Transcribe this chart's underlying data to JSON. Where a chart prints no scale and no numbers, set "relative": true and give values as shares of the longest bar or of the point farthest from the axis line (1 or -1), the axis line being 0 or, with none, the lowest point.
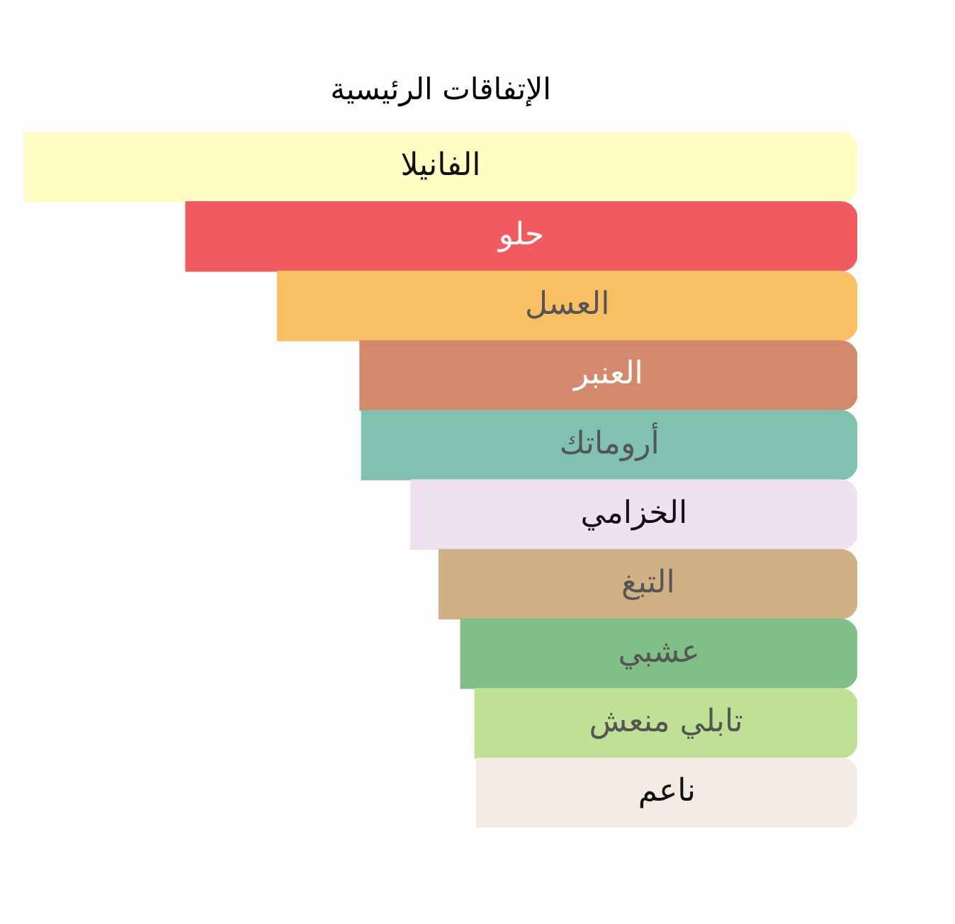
{
  "chart_data": {
    "type": "bar",
    "orientation": "horizontal",
    "relative": true,
    "title": "الإتفاقات الرئيسية",
    "categories": [
      "الفانيلا",
      "حلو",
      "العسل",
      "العنبر",
      "أروماتك",
      "الخزامي",
      "التبغ",
      "عشبي",
      "تابلي منعش",
      "ناعم"
    ],
    "values": [
      1,
      0.806,
      0.696,
      0.597,
      0.595,
      0.536,
      0.502,
      0.476,
      0.459,
      0.457
    ],
    "colors": [
      "#fffbc3",
      "#ef5b60",
      "#f9c063",
      "#d38a6c",
      "#80c1b0",
      "#efe1f2",
      "#cfb185",
      "#81bf88",
      "#c0e096",
      "#f4ece4"
    ],
    "legend": false
  }
}
